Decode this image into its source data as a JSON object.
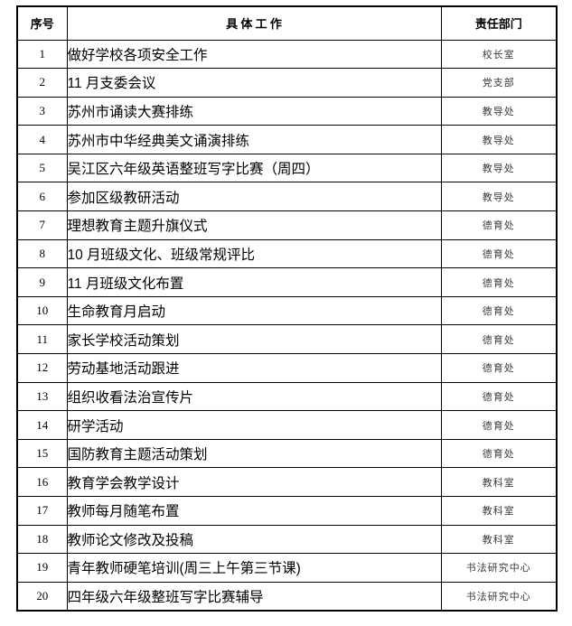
{
  "colors": {
    "background": "#ffffff",
    "border": "#000000",
    "body_text": "#000000",
    "department_text": "#3b3b3b"
  },
  "table": {
    "headers": [
      "序号",
      "具 体 工 作",
      "责任部门"
    ],
    "rows": [
      {
        "no": "1",
        "work": "做好学校各项安全工作",
        "department": "校长室"
      },
      {
        "no": "2",
        "work": "11 月支委会议",
        "department": "党支部"
      },
      {
        "no": "3",
        "work": "苏州市诵读大赛排练",
        "department": "教导处"
      },
      {
        "no": "4",
        "work": "苏州市中华经典美文诵演排练",
        "department": "教导处"
      },
      {
        "no": "5",
        "work": "吴江区六年级英语整班写字比赛（周四）",
        "department": "教导处"
      },
      {
        "no": "6",
        "work": "参加区级教研活动",
        "department": "教导处"
      },
      {
        "no": "7",
        "work": "理想教育主题升旗仪式",
        "department": "德育处"
      },
      {
        "no": "8",
        "work": "10 月班级文化、班级常规评比",
        "department": "德育处"
      },
      {
        "no": "9",
        "work": "11 月班级文化布置",
        "department": "德育处"
      },
      {
        "no": "10",
        "work": "生命教育月启动",
        "department": "德育处"
      },
      {
        "no": "11",
        "work": "家长学校活动策划",
        "department": "德育处"
      },
      {
        "no": "12",
        "work": "劳动基地活动跟进",
        "department": "德育处"
      },
      {
        "no": "13",
        "work": "组织收看法治宣传片",
        "department": "德育处"
      },
      {
        "no": "14",
        "work": "研学活动",
        "department": "德育处"
      },
      {
        "no": "15",
        "work": "国防教育主题活动策划",
        "department": "德育处"
      },
      {
        "no": "16",
        "work": "教育学会教学设计",
        "department": "教科室"
      },
      {
        "no": "17",
        "work": "教师每月随笔布置",
        "department": "教科室"
      },
      {
        "no": "18",
        "work": "教师论文修改及投稿",
        "department": "教科室"
      },
      {
        "no": "19",
        "work": "青年教师硬笔培训(周三上午第三节课)",
        "department": "书法研究中心"
      },
      {
        "no": "20",
        "work": "四年级六年级整班写字比赛辅导",
        "department": "书法研究中心"
      }
    ]
  }
}
